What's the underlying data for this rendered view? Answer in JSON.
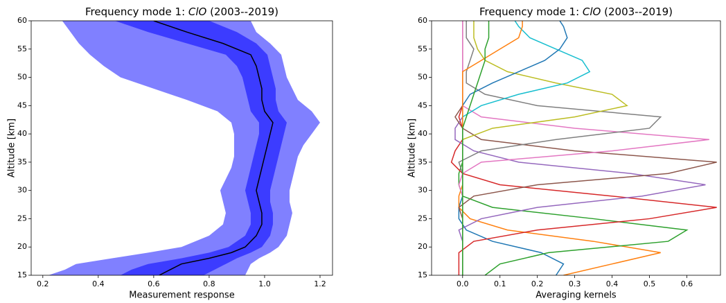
{
  "chart_data": [
    {
      "type": "band",
      "title": [
        "Frequency mode 1: ",
        "ClO",
        " (2003--2019)"
      ],
      "xlabel": "Measurement response",
      "ylabel": "Altitude [km]",
      "xlim": [
        0.158,
        1.245
      ],
      "ylim": [
        15,
        60
      ],
      "xticks": [
        0.2,
        0.4,
        0.6,
        0.8,
        {
          "value": 1,
          "label": "1.0"
        },
        1.2
      ],
      "yticks": [
        15,
        20,
        25,
        30,
        35,
        40,
        45,
        50,
        55,
        60
      ],
      "y": [
        15,
        16,
        17,
        18,
        19,
        20,
        22,
        24,
        26,
        28,
        30,
        32,
        34,
        36,
        38,
        40,
        42,
        44,
        46,
        48,
        50,
        52,
        54,
        56,
        58,
        60
      ],
      "series": [
        {
          "color": "#8080ff",
          "lower": [
            0.22,
            0.28,
            0.32,
            0.45,
            0.58,
            0.7,
            0.8,
            0.85,
            0.86,
            0.85,
            0.84,
            0.86,
            0.88,
            0.89,
            0.89,
            0.89,
            0.88,
            0.83,
            0.72,
            0.6,
            0.48,
            0.42,
            0.37,
            0.33,
            0.3,
            0.27
          ],
          "upper": [
            0.93,
            0.94,
            0.95,
            0.98,
            1.02,
            1.05,
            1.08,
            1.09,
            1.1,
            1.09,
            1.09,
            1.1,
            1.11,
            1.12,
            1.14,
            1.17,
            1.2,
            1.17,
            1.12,
            1.1,
            1.08,
            1.07,
            1.06,
            1.02,
            0.97,
            0.95
          ]
        },
        {
          "color": "#3c3cff",
          "lower": [
            0.48,
            0.52,
            0.58,
            0.7,
            0.8,
            0.87,
            0.93,
            0.95,
            0.95,
            0.94,
            0.93,
            0.94,
            0.95,
            0.96,
            0.97,
            0.98,
            0.98,
            0.95,
            0.94,
            0.93,
            0.92,
            0.9,
            0.86,
            0.72,
            0.58,
            0.46
          ],
          "upper": [
            0.78,
            0.82,
            0.86,
            0.9,
            0.95,
            0.99,
            1.02,
            1.03,
            1.03,
            1.02,
            1.02,
            1.03,
            1.04,
            1.05,
            1.06,
            1.07,
            1.08,
            1.05,
            1.04,
            1.04,
            1.03,
            1.02,
            1.01,
            0.97,
            0.9,
            0.8
          ]
        },
        {
          "color": "#000000",
          "values": [
            0.62,
            0.66,
            0.7,
            0.8,
            0.88,
            0.93,
            0.97,
            0.99,
            0.99,
            0.98,
            0.97,
            0.98,
            0.99,
            1.0,
            1.01,
            1.02,
            1.03,
            1.0,
            0.99,
            0.99,
            0.98,
            0.97,
            0.95,
            0.85,
            0.72,
            0.6
          ]
        }
      ]
    },
    {
      "type": "line",
      "title": [
        "Frequency mode 1: ",
        "ClO",
        " (2003--2019)"
      ],
      "xlabel": "Averaging kernels",
      "ylabel": "Altitude [km]",
      "xlim": [
        -0.083,
        0.69
      ],
      "ylim": [
        15,
        60
      ],
      "xticks": [
        {
          "value": 0,
          "label": "0.0"
        },
        0.1,
        0.2,
        0.3,
        0.4,
        0.5,
        0.6
      ],
      "yticks": [
        15,
        20,
        25,
        30,
        35,
        40,
        45,
        50,
        55,
        60
      ],
      "y": [
        15,
        17,
        19,
        21,
        23,
        25,
        27,
        29,
        31,
        33,
        35,
        37,
        39,
        41,
        43,
        45,
        47,
        49,
        51,
        53,
        55,
        57,
        59,
        60
      ],
      "series": [
        {
          "color": "#1f77b4",
          "values": [
            0.25,
            0.27,
            0.21,
            0.08,
            0.01,
            -0.01,
            -0.01,
            0,
            0,
            0,
            0,
            0,
            0,
            0,
            0,
            0,
            0,
            0,
            0,
            0,
            0,
            0,
            0,
            0
          ]
        },
        {
          "color": "#ff7f0e",
          "values": [
            0.27,
            0.4,
            0.53,
            0.35,
            0.12,
            0.02,
            -0.01,
            -0.01,
            0,
            0,
            0,
            0,
            0,
            0,
            0,
            0,
            0,
            0,
            0,
            0,
            0,
            0,
            0,
            0
          ]
        },
        {
          "color": "#2ca02c",
          "values": [
            0.06,
            0.1,
            0.23,
            0.55,
            0.6,
            0.35,
            0.08,
            0,
            -0.01,
            -0.01,
            0,
            0,
            0,
            0,
            0,
            0,
            0,
            0,
            0,
            0,
            0,
            0,
            0,
            0
          ]
        },
        {
          "color": "#d62728",
          "values": [
            -0.01,
            -0.01,
            -0.01,
            0.03,
            0.2,
            0.5,
            0.68,
            0.4,
            0.1,
            0,
            -0.03,
            -0.02,
            0,
            0,
            -0.01,
            0,
            0,
            0,
            0,
            0,
            0,
            0,
            0,
            0
          ]
        },
        {
          "color": "#9467bd",
          "values": [
            0,
            0,
            0,
            0,
            -0.01,
            0.05,
            0.2,
            0.48,
            0.65,
            0.45,
            0.15,
            0.03,
            -0.02,
            -0.02,
            0,
            0,
            0,
            0,
            0,
            0,
            0,
            0,
            0,
            0
          ]
        },
        {
          "color": "#8c564b",
          "values": [
            0,
            0,
            0,
            0,
            0,
            0,
            -0.01,
            0.03,
            0.2,
            0.55,
            0.68,
            0.3,
            0.05,
            0,
            -0.02,
            0,
            0,
            0,
            0,
            0,
            0,
            0,
            0,
            0
          ]
        },
        {
          "color": "#e377c2",
          "values": [
            0,
            0,
            0,
            0,
            0,
            0,
            0,
            0,
            -0.01,
            0,
            0.05,
            0.4,
            0.66,
            0.3,
            0.05,
            0,
            0,
            0,
            0,
            0,
            0,
            0,
            0,
            0
          ]
        },
        {
          "color": "#7f7f7f",
          "values": [
            0,
            0,
            0,
            0,
            0,
            0,
            0,
            0,
            0,
            0,
            -0.01,
            0.05,
            0.25,
            0.5,
            0.53,
            0.2,
            0.06,
            0.01,
            0.01,
            0.02,
            0.03,
            0.01,
            0.01,
            0.01
          ]
        },
        {
          "color": "#bcbd22",
          "values": [
            0,
            0,
            0,
            0,
            0,
            0,
            0,
            0,
            0,
            0,
            0,
            0,
            0,
            0.08,
            0.3,
            0.44,
            0.4,
            0.25,
            0.12,
            0.06,
            0.04,
            0.03,
            0.03,
            0.03
          ]
        },
        {
          "color": "#17becf",
          "values": [
            0,
            0,
            0,
            0,
            0,
            0,
            0,
            0,
            0,
            0,
            0,
            0,
            0,
            0,
            0,
            0.05,
            0.15,
            0.28,
            0.34,
            0.32,
            0.25,
            0.18,
            0.15,
            0.14
          ]
        },
        {
          "color": "#1f77b4",
          "values": [
            0,
            0,
            0,
            0,
            0,
            0,
            0,
            0,
            0,
            0,
            0,
            0,
            0,
            0,
            0,
            0,
            0.02,
            0.08,
            0.15,
            0.22,
            0.26,
            0.28,
            0.27,
            0.26
          ]
        },
        {
          "color": "#ff7f0e",
          "values": [
            0,
            0,
            0,
            0,
            0,
            0,
            0,
            0,
            0,
            0,
            0,
            0,
            0,
            0,
            0,
            0,
            0,
            0,
            0,
            0.05,
            0.1,
            0.15,
            0.16,
            0.16
          ]
        },
        {
          "color": "#2ca02c",
          "values": [
            0,
            0,
            0,
            0,
            0,
            0,
            0,
            0,
            0,
            0,
            0,
            0,
            0,
            0,
            0.01,
            0.02,
            0.03,
            0.04,
            0.05,
            0.06,
            0.06,
            0.07,
            0.07,
            0.07
          ]
        }
      ]
    }
  ]
}
